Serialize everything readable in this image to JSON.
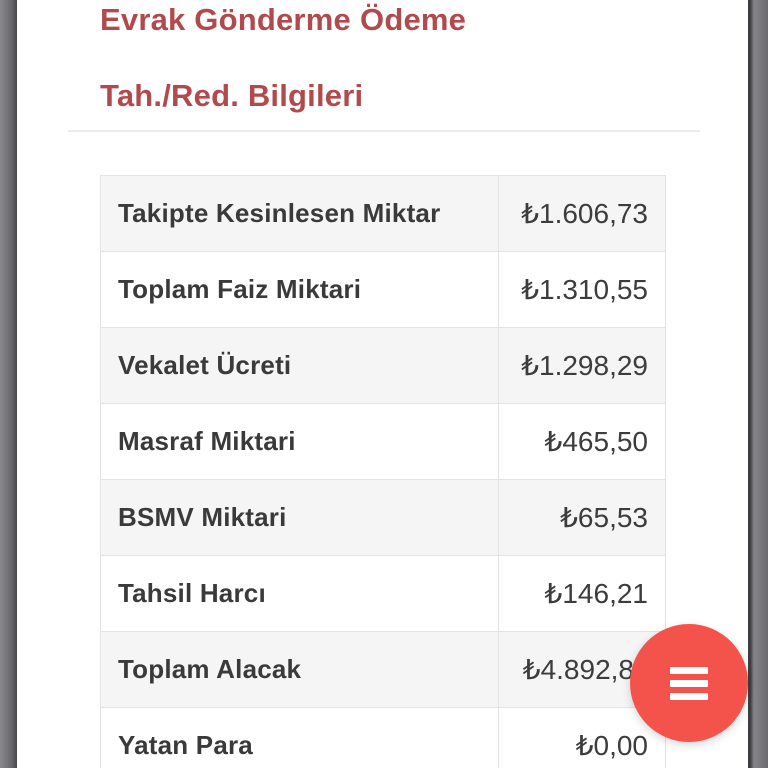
{
  "tabs": [
    {
      "label": "Evrak Gönderme"
    },
    {
      "label": "Ödeme"
    },
    {
      "label": "Tah./Red. Bilgileri"
    }
  ],
  "table": {
    "rows": [
      {
        "label": "Takipte Kesinlesen Miktar",
        "value": "₺1.606,73"
      },
      {
        "label": "Toplam Faiz Miktari",
        "value": "₺1.310,55"
      },
      {
        "label": "Vekalet Ücreti",
        "value": "₺1.298,29"
      },
      {
        "label": "Masraf Miktari",
        "value": "₺465,50"
      },
      {
        "label": "BSMV Miktari",
        "value": "₺65,53"
      },
      {
        "label": "Tahsil Harcı",
        "value": "₺146,21"
      },
      {
        "label": "Toplam Alacak",
        "value": "₺4.892,8"
      },
      {
        "label": "Yatan Para",
        "value": "₺0,00"
      }
    ]
  },
  "fab": {
    "icon": "hamburger-menu-icon"
  },
  "colors": {
    "link_red": "#b14a4d",
    "fab_red": "#f4534c",
    "row_alt_gray": "#f5f5f6",
    "border_gray": "#e3e3e3",
    "text_dark": "#3a3a3a"
  }
}
